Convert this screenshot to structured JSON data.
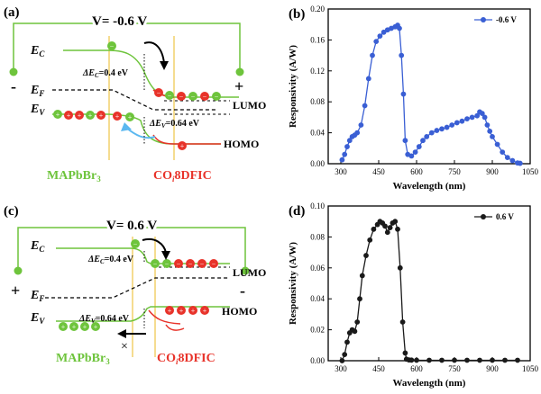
{
  "panels": {
    "a": {
      "label": "(a)",
      "voltage": "V= -0.6 V",
      "left_sign": "-",
      "right_sign": "+",
      "ec": "E",
      "ec_sub": "C",
      "ef": "E",
      "ef_sub": "F",
      "ev": "E",
      "ev_sub": "V",
      "dec": "ΔE",
      "dec_sub": "C",
      "dec_val": "=0.4 eV",
      "dev": "ΔE",
      "dev_sub": "V",
      "dev_val": "=0.64 eV",
      "lumo": "LUMO",
      "homo": "HOMO",
      "material_left": "MAPbBr",
      "material_left_sub": "3",
      "material_right": "CO",
      "material_right_sub": "i",
      "material_right_tail": "8DFIC"
    },
    "c": {
      "label": "(c)",
      "voltage": "V= 0.6 V",
      "left_sign": "+",
      "right_sign": "-",
      "ec": "E",
      "ec_sub": "C",
      "ef": "E",
      "ef_sub": "F",
      "ev": "E",
      "ev_sub": "V",
      "dec": "ΔE",
      "dec_sub": "C",
      "dec_val": "=0.4 eV",
      "dev": "ΔE",
      "dev_sub": "V",
      "dev_val": "=0.64 eV",
      "lumo": "LUMO",
      "homo": "HOMO",
      "material_left": "MAPbBr",
      "material_left_sub": "3",
      "material_right": "CO",
      "material_right_sub": "i",
      "material_right_tail": "8DFIC",
      "blocked": "×"
    }
  },
  "colors": {
    "green": "#6ec43c",
    "red": "#e8332a",
    "blue_arrow": "#5bb8f0",
    "yellow": "#f2d16b",
    "blue_series": "#3a5fd4",
    "black_series": "#1a1a1a"
  },
  "chart_data": [
    {
      "label": "(b)",
      "type": "line",
      "xlabel": "Wavelength (nm)",
      "ylabel": "Responsivity (A/W)",
      "xlim": [
        250,
        1050
      ],
      "ylim": [
        0,
        0.2
      ],
      "xticks": [
        "300",
        "450",
        "600",
        "750",
        "900",
        "1050"
      ],
      "yticks": [
        "0.00",
        "0.04",
        "0.08",
        "0.12",
        "0.16",
        "0.20"
      ],
      "legend": "-0.6 V",
      "legend_position": "top-right",
      "series": [
        {
          "name": "-0.6 V",
          "x": [
            305,
            315,
            325,
            335,
            345,
            355,
            365,
            380,
            395,
            410,
            425,
            440,
            455,
            470,
            485,
            500,
            515,
            525,
            532,
            540,
            548,
            555,
            565,
            580,
            595,
            610,
            625,
            640,
            660,
            680,
            700,
            720,
            740,
            760,
            780,
            800,
            820,
            840,
            850,
            860,
            870,
            880,
            890,
            900,
            920,
            940,
            960,
            980,
            1000,
            1010
          ],
          "y": [
            0.005,
            0.012,
            0.022,
            0.03,
            0.035,
            0.037,
            0.04,
            0.05,
            0.075,
            0.11,
            0.14,
            0.158,
            0.165,
            0.17,
            0.173,
            0.175,
            0.177,
            0.179,
            0.175,
            0.14,
            0.09,
            0.03,
            0.012,
            0.01,
            0.015,
            0.022,
            0.03,
            0.035,
            0.04,
            0.043,
            0.045,
            0.047,
            0.05,
            0.053,
            0.055,
            0.058,
            0.06,
            0.062,
            0.067,
            0.065,
            0.06,
            0.05,
            0.042,
            0.035,
            0.025,
            0.015,
            0.008,
            0.004,
            0.001,
            0.0005
          ]
        }
      ]
    },
    {
      "label": "(d)",
      "type": "line",
      "xlabel": "Wavelength (nm)",
      "ylabel": "Responsivity (A/W)",
      "xlim": [
        250,
        1050
      ],
      "ylim": [
        0,
        0.1
      ],
      "xticks": [
        "300",
        "450",
        "600",
        "750",
        "900",
        "1050"
      ],
      "yticks": [
        "0.00",
        "0.02",
        "0.04",
        "0.06",
        "0.08",
        "0.10"
      ],
      "legend": "0.6 V",
      "legend_position": "top-right",
      "series": [
        {
          "name": "0.6 V",
          "x": [
            305,
            315,
            325,
            335,
            345,
            355,
            365,
            375,
            385,
            400,
            415,
            430,
            445,
            455,
            465,
            475,
            485,
            495,
            505,
            515,
            525,
            535,
            545,
            555,
            560,
            570,
            580,
            600,
            650,
            700,
            750,
            800,
            850,
            900,
            950,
            1000
          ],
          "y": [
            0.0,
            0.004,
            0.012,
            0.018,
            0.02,
            0.019,
            0.025,
            0.04,
            0.055,
            0.068,
            0.078,
            0.085,
            0.088,
            0.09,
            0.089,
            0.087,
            0.083,
            0.086,
            0.089,
            0.09,
            0.085,
            0.06,
            0.025,
            0.005,
            0.001,
            0.0005,
            0.0004,
            0.0003,
            0.0003,
            0.0003,
            0.0003,
            0.0003,
            0.0003,
            0.0003,
            0.0003,
            0.0003
          ]
        }
      ]
    }
  ]
}
